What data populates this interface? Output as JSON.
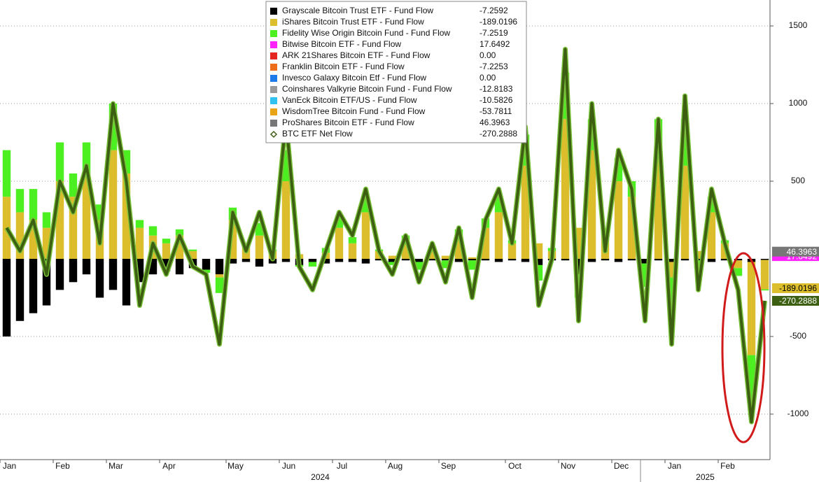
{
  "chart_data": {
    "type": "bar",
    "ylim": [
      -1293,
      1667
    ],
    "yticks": [
      1500,
      1000,
      500,
      -500,
      -1000
    ],
    "grid": true,
    "years": [
      "2024",
      "2025"
    ],
    "categories": [
      "Jan",
      null,
      null,
      null,
      "Feb",
      null,
      null,
      null,
      "Mar",
      null,
      null,
      null,
      "Apr",
      null,
      null,
      null,
      null,
      "May",
      null,
      null,
      null,
      "Jun",
      null,
      null,
      null,
      "Jul",
      null,
      null,
      null,
      "Aug",
      null,
      null,
      null,
      "Sep",
      null,
      null,
      null,
      null,
      "Oct",
      null,
      null,
      null,
      "Nov",
      null,
      null,
      null,
      "Dec",
      null,
      null,
      null,
      "Jan",
      null,
      null,
      null,
      "Feb",
      null,
      null,
      null
    ],
    "series": [
      {
        "name": "Grayscale Bitcoin Trust ETF - Fund Flow",
        "color": "#000000",
        "latest": -7.2592,
        "values": [
          -500,
          -400,
          -350,
          -300,
          -200,
          -150,
          -100,
          -250,
          -200,
          -300,
          -150,
          -100,
          -80,
          -100,
          -60,
          -70,
          -100,
          -30,
          -20,
          -50,
          -30,
          -20,
          -40,
          -20,
          -30,
          -20,
          -20,
          -30,
          -10,
          -20,
          -10,
          -20,
          -10,
          -10,
          -20,
          -10,
          -10,
          -20,
          -10,
          -20,
          -40,
          -10,
          -10,
          -100,
          -20,
          -10,
          -20,
          -10,
          -30,
          -10,
          -20,
          -10,
          -10,
          -20,
          -10,
          -10,
          -20,
          -7.2592
        ]
      },
      {
        "name": "iShares Bitcoin Trust ETF - Fund Flow",
        "color": "#dcbd2c",
        "latest": -189.0196,
        "axis_tag": true,
        "values": [
          400,
          300,
          250,
          200,
          500,
          400,
          550,
          250,
          700,
          550,
          200,
          150,
          100,
          150,
          50,
          0,
          -20,
          250,
          80,
          150,
          50,
          500,
          30,
          0,
          40,
          200,
          100,
          300,
          50,
          20,
          120,
          0,
          60,
          20,
          150,
          10,
          200,
          300,
          100,
          600,
          100,
          50,
          900,
          200,
          700,
          150,
          500,
          400,
          0,
          700,
          -100,
          600,
          50,
          300,
          100,
          -50,
          -600,
          -189.0196
        ]
      },
      {
        "name": "Fidelity Wise Origin Bitcoin Fund - Fund Flow",
        "color": "#4cf020",
        "latest": -7.2519,
        "values": [
          300,
          150,
          200,
          100,
          250,
          150,
          200,
          100,
          300,
          150,
          50,
          60,
          30,
          40,
          10,
          -20,
          -100,
          80,
          20,
          80,
          10,
          200,
          -10,
          -30,
          30,
          80,
          40,
          100,
          10,
          -20,
          30,
          -50,
          20,
          -50,
          40,
          -60,
          60,
          100,
          20,
          200,
          -100,
          20,
          300,
          -150,
          200,
          30,
          150,
          100,
          -150,
          200,
          -200,
          300,
          -50,
          100,
          20,
          -50,
          -300,
          -7.2519
        ]
      },
      {
        "name": "Bitwise Bitcoin ETF - Fund Flow",
        "color": "#ff24ff",
        "latest": 17.6492,
        "axis_tag": true
      },
      {
        "name": "ARK 21Shares Bitcoin ETF - Fund Flow",
        "color": "#e3261f",
        "latest": {
          "value": 0,
          "label": "0.00"
        }
      },
      {
        "name": "Franklin Bitcoin ETF - Fund Flow",
        "color": "#ee6d1a",
        "latest": -7.2253
      },
      {
        "name": "Invesco Galaxy Bitcoin Etf - Fund Flow",
        "color": "#1e7ae6",
        "latest": {
          "value": 0,
          "label": "0.00"
        }
      },
      {
        "name": "Coinshares Valkyrie Bitcoin Fund - Fund Flow",
        "color": "#9a9a9a",
        "latest": -12.8183
      },
      {
        "name": "VanEck Bitcoin ETF/US - Fund Flow",
        "color": "#2fc1f0",
        "latest": -10.5826
      },
      {
        "name": "WisdomTree Bitcoin Fund - Fund Flow",
        "color": "#e9a317",
        "latest": -53.7811
      },
      {
        "name": "ProShares Bitcoin ETF - Fund Flow",
        "color": "#777777",
        "latest": 46.3963,
        "axis_tag": true
      },
      {
        "name": "BTC ETF Net Flow",
        "color": "#3d5f12",
        "type": "line",
        "latest": -270.2888,
        "axis_tag": true,
        "values": [
          200,
          50,
          250,
          -100,
          500,
          300,
          600,
          100,
          1000,
          500,
          -300,
          100,
          -100,
          150,
          -50,
          -100,
          -550,
          300,
          50,
          300,
          0,
          900,
          -50,
          -200,
          50,
          300,
          150,
          450,
          50,
          -100,
          150,
          -150,
          100,
          -150,
          200,
          -250,
          250,
          450,
          100,
          850,
          -300,
          0,
          1350,
          -400,
          1000,
          50,
          700,
          450,
          -400,
          900,
          -550,
          1050,
          -200,
          450,
          100,
          -200,
          -1050,
          -270.2888
        ]
      }
    ]
  }
}
